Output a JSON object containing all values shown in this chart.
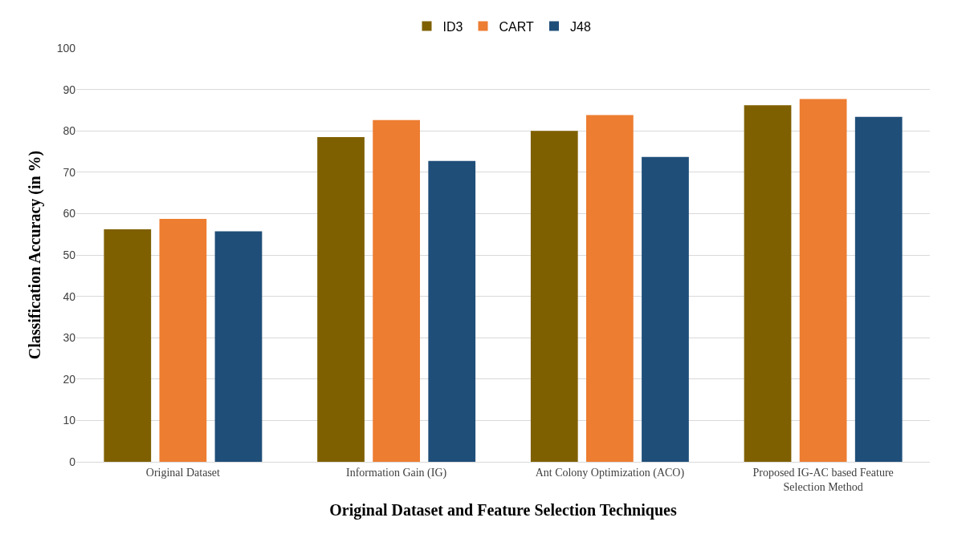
{
  "chart_data": {
    "type": "bar",
    "xlabel": "Original Dataset and Feature Selection Techniques",
    "ylabel": "Classification Accuracy (in %)",
    "categories": [
      "Original Dataset",
      "Information Gain (IG)",
      "Ant Colony Optimization (ACO)",
      "Proposed IG-AC based Feature Selection Method"
    ],
    "series": [
      {
        "name": "ID3",
        "color": "#7f6000",
        "values": [
          56.2,
          78.5,
          80.0,
          86.2
        ]
      },
      {
        "name": "CART",
        "color": "#ed7d31",
        "values": [
          58.7,
          82.6,
          83.8,
          87.7
        ]
      },
      {
        "name": "J48",
        "color": "#1f4e79",
        "values": [
          55.7,
          72.7,
          73.7,
          83.4
        ]
      }
    ],
    "ylim": [
      0,
      100
    ],
    "yticks": [
      0,
      10,
      20,
      30,
      40,
      50,
      60,
      70,
      80,
      90,
      100
    ],
    "grid": "y",
    "legend": "top"
  }
}
